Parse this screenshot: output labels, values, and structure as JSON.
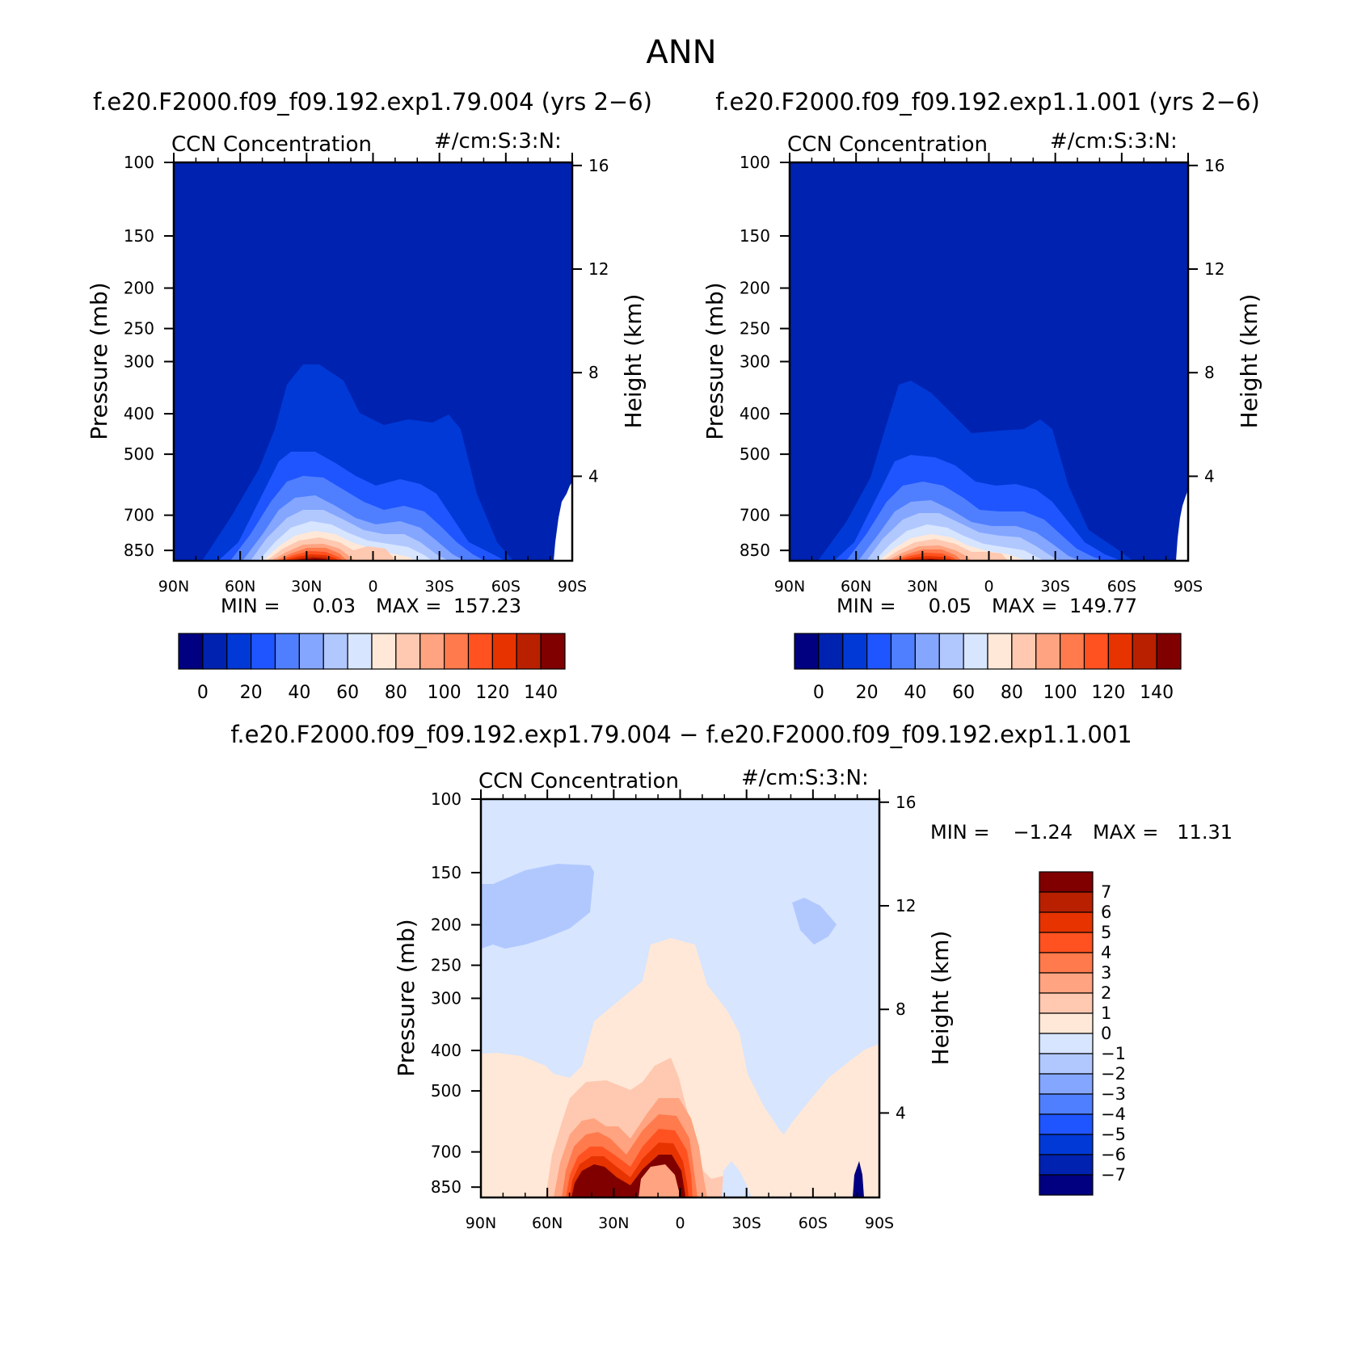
{
  "figure_title": "ANN",
  "panels": {
    "top_left": {
      "case": "f.e20.F2000.f09_f09.192.exp1.79.004 (yrs 2−6)",
      "variable": "CCN Concentration",
      "units": "#/cm:S:3:N:",
      "ylabel_left": "Pressure (mb)",
      "ylabel_right": "Height (km)",
      "min_label": "MIN =",
      "min_value": "0.03",
      "max_label": "MAX =",
      "max_value": "157.23"
    },
    "top_right": {
      "case": "f.e20.F2000.f09_f09.192.exp1.1.001 (yrs 2−6)",
      "variable": "CCN Concentration",
      "units": "#/cm:S:3:N:",
      "ylabel_left": "Pressure (mb)",
      "ylabel_right": "Height (km)",
      "min_label": "MIN =",
      "min_value": "0.05",
      "max_label": "MAX =",
      "max_value": "149.77"
    },
    "bottom": {
      "case": "f.e20.F2000.f09_f09.192.exp1.79.004 − f.e20.F2000.f09_f09.192.exp1.1.001",
      "variable": "CCN Concentration",
      "units": "#/cm:S:3:N:",
      "ylabel_left": "Pressure (mb)",
      "ylabel_right": "Height (km)",
      "min_label": "MIN =",
      "min_value": "−1.24",
      "max_label": "MAX =",
      "max_value": "11.31"
    }
  },
  "colorbars": {
    "top_colors": [
      "#000080",
      "#0022b0",
      "#0039d6",
      "#1f55ff",
      "#4f7fff",
      "#84a6ff",
      "#b1c8ff",
      "#d7e5ff",
      "#ffe8d7",
      "#ffc8b0",
      "#ffa380",
      "#ff7a4d",
      "#ff5220",
      "#e63300",
      "#b82000",
      "#800000"
    ],
    "top_ticks": [
      "0",
      "20",
      "40",
      "60",
      "80",
      "100",
      "120",
      "140"
    ],
    "diff_colors": [
      "#800000",
      "#b82000",
      "#e63300",
      "#ff5220",
      "#ff7a4d",
      "#ffa380",
      "#ffc8b0",
      "#ffe8d7",
      "#d7e5ff",
      "#b1c8ff",
      "#84a6ff",
      "#4f7fff",
      "#1f55ff",
      "#0039d6",
      "#0022b0",
      "#000080"
    ],
    "diff_ticks": [
      "7",
      "6",
      "5",
      "4",
      "3",
      "2",
      "1",
      "0",
      "−1",
      "−2",
      "−3",
      "−4",
      "−5",
      "−6",
      "−7"
    ]
  },
  "chart_data": [
    {
      "type": "heatmap",
      "panel": "top_left",
      "title": "f.e20.F2000.f09_f09.192.exp1.79.004 (yrs 2−6)",
      "subtitle": "CCN Concentration",
      "units": "#/cm:S:3:N:",
      "x_ticks": [
        "90N",
        "60N",
        "30N",
        "0",
        "30S",
        "60S",
        "90S"
      ],
      "y_ticks": [
        "100",
        "150",
        "200",
        "250",
        "300",
        "400",
        "500",
        "700",
        "850"
      ],
      "y_ticks_right": [
        "16",
        "12",
        "8",
        "4"
      ],
      "ylim_mb": [
        900,
        100
      ],
      "ylog": true,
      "levels": [
        0,
        10,
        20,
        30,
        40,
        50,
        60,
        70,
        80,
        90,
        100,
        110,
        120,
        130,
        140
      ],
      "fill_values": [
        8,
        18,
        28,
        38,
        48,
        58,
        68,
        78,
        88,
        98,
        108,
        118,
        128,
        138,
        148
      ],
      "min": 0.03,
      "max": 157.23
    },
    {
      "type": "heatmap",
      "panel": "top_right",
      "title": "f.e20.F2000.f09_f09.192.exp1.1.001 (yrs 2−6)",
      "subtitle": "CCN Concentration",
      "units": "#/cm:S:3:N:",
      "x_ticks": [
        "90N",
        "60N",
        "30N",
        "0",
        "30S",
        "60S",
        "90S"
      ],
      "y_ticks": [
        "100",
        "150",
        "200",
        "250",
        "300",
        "400",
        "500",
        "700",
        "850"
      ],
      "y_ticks_right": [
        "16",
        "12",
        "8",
        "4"
      ],
      "ylim_mb": [
        900,
        100
      ],
      "ylog": true,
      "levels": [
        0,
        10,
        20,
        30,
        40,
        50,
        60,
        70,
        80,
        90,
        100,
        110,
        120,
        130,
        140
      ],
      "fill_values": [
        8,
        18,
        28,
        38,
        48,
        58,
        68,
        78,
        88,
        98,
        108,
        118,
        128,
        138,
        148
      ],
      "min": 0.05,
      "max": 149.77
    },
    {
      "type": "heatmap",
      "panel": "bottom",
      "title": "f.e20.F2000.f09_f09.192.exp1.79.004 − f.e20.F2000.f09_f09.192.exp1.1.001",
      "subtitle": "CCN Concentration",
      "units": "#/cm:S:3:N:",
      "x_ticks": [
        "90N",
        "60N",
        "30N",
        "0",
        "30S",
        "60S",
        "90S"
      ],
      "y_ticks": [
        "100",
        "150",
        "200",
        "250",
        "300",
        "400",
        "500",
        "700",
        "850"
      ],
      "y_ticks_right": [
        "16",
        "12",
        "8",
        "4"
      ],
      "ylim_mb": [
        900,
        100
      ],
      "ylog": true,
      "levels": [
        -7,
        -6,
        -5,
        -4,
        -3,
        -2,
        -1,
        0,
        1,
        2,
        3,
        4,
        5,
        6,
        7
      ],
      "fill_values": [
        -1.5,
        0.5,
        1.5,
        2.5,
        3.5,
        4.5,
        5.5,
        6.5,
        7.5
      ],
      "min": -1.24,
      "max": 11.31
    }
  ]
}
